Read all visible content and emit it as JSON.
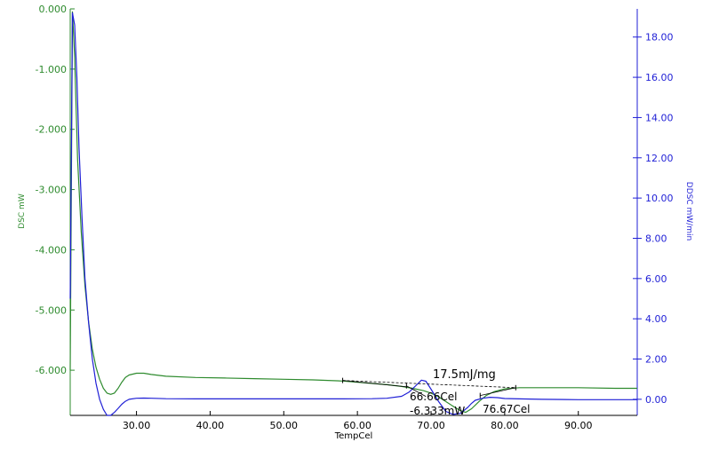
{
  "chart_data": {
    "type": "line",
    "title": "",
    "xlabel": "TempCel",
    "ylabel_left": "DSC mW",
    "ylabel_right": "DDSC mW/min",
    "xlim": [
      21.0,
      98.0
    ],
    "ylim_left": [
      -6.75,
      0.0
    ],
    "ylim_right": [
      -0.8,
      19.4
    ],
    "x_ticks": [
      "30.00",
      "40.00",
      "50.00",
      "60.00",
      "70.00",
      "80.00",
      "90.00"
    ],
    "x_tick_values": [
      30,
      40,
      50,
      60,
      70,
      80,
      90
    ],
    "y_left_ticks": [
      "0.000",
      "-1.000",
      "-2.000",
      "-3.000",
      "-4.000",
      "-5.000",
      "-6.000"
    ],
    "y_left_tick_values": [
      0,
      -1,
      -2,
      -3,
      -4,
      -5,
      -6
    ],
    "y_right_ticks": [
      "0.00",
      "2.00",
      "4.00",
      "6.00",
      "8.00",
      "10.00",
      "12.00",
      "14.00",
      "16.00",
      "18.00"
    ],
    "y_right_tick_values": [
      0,
      2,
      4,
      6,
      8,
      10,
      12,
      14,
      16,
      18
    ],
    "colors": {
      "left_axis": "#2e8b2e",
      "right_axis": "#1f1fd6",
      "frame": "#000000"
    },
    "series": [
      {
        "name": "DSC",
        "axis": "left",
        "color": "#2e8b2e",
        "x": [
          21.0,
          21.3,
          21.6,
          22.0,
          22.5,
          23.0,
          23.5,
          24.0,
          24.5,
          25.0,
          25.5,
          26.0,
          26.5,
          27.0,
          27.5,
          28.0,
          28.5,
          29.0,
          30.0,
          31.0,
          32.0,
          34.0,
          38.0,
          42.0,
          46.0,
          50.0,
          54.0,
          58.0,
          62.0,
          64.0,
          66.0,
          67.5,
          69.0,
          70.0,
          71.0,
          72.0,
          73.0,
          74.0,
          74.7,
          75.5,
          76.5,
          77.5,
          78.5,
          80.0,
          82.0,
          85.0,
          90.0,
          95.0,
          98.0
        ],
        "y": [
          -6.0,
          -0.05,
          -0.8,
          -2.5,
          -3.7,
          -4.6,
          -5.2,
          -5.65,
          -5.95,
          -6.15,
          -6.3,
          -6.38,
          -6.4,
          -6.38,
          -6.3,
          -6.2,
          -6.12,
          -6.08,
          -6.05,
          -6.05,
          -6.07,
          -6.1,
          -6.12,
          -6.13,
          -6.14,
          -6.15,
          -6.16,
          -6.18,
          -6.22,
          -6.24,
          -6.27,
          -6.3,
          -6.34,
          -6.38,
          -6.44,
          -6.52,
          -6.6,
          -6.67,
          -6.7,
          -6.64,
          -6.52,
          -6.42,
          -6.36,
          -6.31,
          -6.29,
          -6.29,
          -6.29,
          -6.3,
          -6.3
        ]
      },
      {
        "name": "DDSC",
        "axis": "right",
        "color": "#1f1fd6",
        "x": [
          21.0,
          21.3,
          21.6,
          21.9,
          22.2,
          22.6,
          23.0,
          23.5,
          24.0,
          24.5,
          25.0,
          25.5,
          26.0,
          26.5,
          27.0,
          27.5,
          28.0,
          28.5,
          29.0,
          30.0,
          31.0,
          32.0,
          34.0,
          38.0,
          42.0,
          46.0,
          50.0,
          54.0,
          58.0,
          62.0,
          64.0,
          66.0,
          67.0,
          68.0,
          68.7,
          69.3,
          70.0,
          71.0,
          72.0,
          73.0,
          74.0,
          75.0,
          75.5,
          76.0,
          77.0,
          78.0,
          79.0,
          80.0,
          82.0,
          85.0,
          90.0,
          95.0,
          98.0
        ],
        "y": [
          5.0,
          19.2,
          18.6,
          16.0,
          12.5,
          9.0,
          6.0,
          3.8,
          2.0,
          0.8,
          0.0,
          -0.5,
          -0.8,
          -0.8,
          -0.65,
          -0.45,
          -0.25,
          -0.1,
          0.0,
          0.05,
          0.06,
          0.05,
          0.03,
          0.02,
          0.02,
          0.02,
          0.02,
          0.02,
          0.02,
          0.03,
          0.05,
          0.15,
          0.35,
          0.7,
          0.95,
          0.9,
          0.5,
          -0.1,
          -0.6,
          -0.75,
          -0.7,
          -0.4,
          -0.2,
          -0.05,
          0.05,
          0.1,
          0.08,
          0.04,
          0.02,
          0.0,
          -0.02,
          -0.02,
          -0.02
        ]
      }
    ],
    "annotations": {
      "enthalpy": "17.5mJ/mg",
      "onset": "66.66Cel",
      "peak_height": "-6.333mW",
      "endset": "76.67Cel",
      "baseline_start": [
        58.0,
        -6.17
      ],
      "baseline_end": [
        81.5,
        -6.29
      ],
      "onset_point": [
        66.66,
        -6.26
      ],
      "endset_point": [
        76.67,
        -6.42
      ]
    }
  }
}
